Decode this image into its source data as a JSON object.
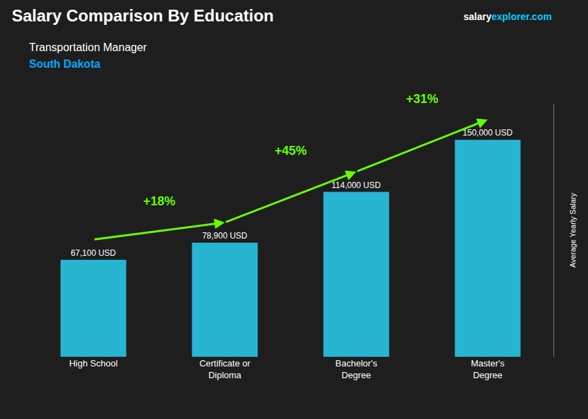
{
  "chart_data": {
    "type": "bar",
    "title": "Salary Comparison By Education",
    "title_color": "#ffffff",
    "subtitle": [
      "Transportation Manager",
      "South Dakota"
    ],
    "subtitle_colors": [
      "#ffffff",
      "#00aaff"
    ],
    "ylabel": "Average Yearly Salary",
    "categories": [
      "High School",
      "Certificate or\nDiploma",
      "Bachelor's\nDegree",
      "Master's\nDegree"
    ],
    "values": [
      67100,
      78900,
      114000,
      150000
    ],
    "value_labels": [
      "67,100 USD",
      "78,900 USD",
      "114,000 USD",
      "150,000 USD"
    ],
    "data_labels": true,
    "value_label_color": "#ffffff",
    "color": "#29c5e6",
    "ylim": [
      0,
      175000
    ],
    "tick_labels": "x",
    "grid": false,
    "annotations": [
      {
        "text": "+18%",
        "color": "#66ff00"
      },
      {
        "text": "+45%",
        "color": "#66ff00"
      },
      {
        "text": "+31%",
        "color": "#66ff00"
      }
    ],
    "brand": [
      {
        "text": "salary",
        "color": "#ffffff"
      },
      {
        "text": "explorer.com",
        "color": "#00ccff"
      }
    ],
    "background_color": "#1e1e1e"
  }
}
